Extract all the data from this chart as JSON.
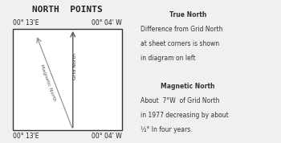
{
  "title": "NORTH  POINTS",
  "title_bg": "#c8ddd5",
  "bg_color": "#f0f0f0",
  "box_color": "#333333",
  "corner_labels": {
    "top_left": "00° 13'E",
    "top_right": "00° 04' W",
    "bot_left": "00° 13'E",
    "bot_right": "00° 04' W"
  },
  "grid_north_label": "Grid North",
  "magnetic_north_label": "Magnetic North",
  "right_text_lines": [
    {
      "text": "True North",
      "bold": true,
      "indent": true
    },
    {
      "text": "Difference from Grid North",
      "bold": false,
      "indent": false
    },
    {
      "text": "at sheet corners is shown",
      "bold": false,
      "indent": false
    },
    {
      "text": "in diagram on left",
      "bold": false,
      "indent": false
    },
    {
      "text": "",
      "bold": false,
      "indent": false
    },
    {
      "text": "Magnetic North",
      "bold": true,
      "indent": true
    },
    {
      "text": "About  7°W  of Grid North",
      "bold": false,
      "indent": false
    },
    {
      "text": "in 1977 decreasing by about",
      "bold": false,
      "indent": false
    },
    {
      "text": "½° In four years.",
      "bold": false,
      "indent": false
    }
  ],
  "line_color": "#555555",
  "magnetic_line_color": "#888888"
}
